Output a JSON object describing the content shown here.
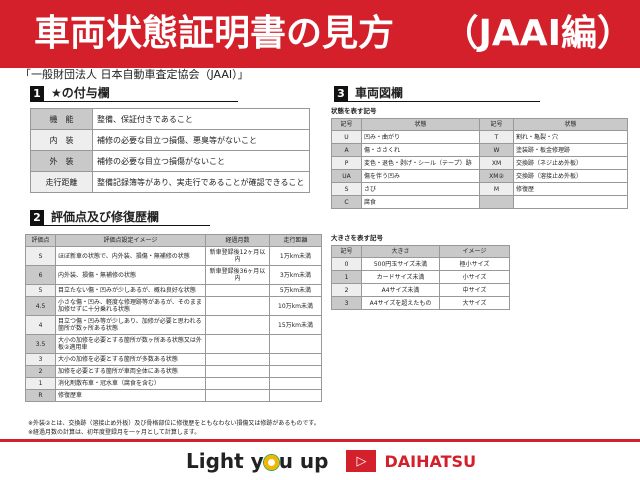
{
  "header": {
    "title": "車両状態証明書の見方　 （JAAI編）",
    "subtitle": "「一般財団法人 日本自動車査定協会（JAAI）」"
  },
  "s1": {
    "num": "1",
    "title": "★の付与欄",
    "rows": [
      [
        "機　能",
        "整備、保証付きであること"
      ],
      [
        "内　装",
        "補修の必要な目立つ損傷、悪臭等がないこと"
      ],
      [
        "外　装",
        "補修の必要な目立つ損傷がないこと"
      ],
      [
        "走行距離",
        "整備記録簿等があり、実走行であることが確認できること"
      ]
    ]
  },
  "s2": {
    "num": "2",
    "title": "評価点及び修復歴欄",
    "headers": [
      "評価点",
      "評価点設定イメージ",
      "経過月数",
      "走行距離"
    ],
    "rows": [
      [
        "S",
        "ほぼ新車の状態で、内外装、損傷・無補修の状態",
        "新車登録後12ヶ月以内",
        "1万km未満"
      ],
      [
        "6",
        "内外装、損傷・無補修の状態",
        "新車登録後36ヶ月以内",
        "3万km未満"
      ],
      [
        "5",
        "目立たない傷・凹みが少しあるが、概ね良好な状態",
        "",
        "5万km未満"
      ],
      [
        "4.5",
        "小さな傷・凹み、軽度な修理跡等があるが、そのまま加修せずに十分乗れる状態",
        "",
        "10万km未満"
      ],
      [
        "4",
        "目立つ傷・凹み等が少しあり、加修が必要と思われる箇所が数ヶ所ある状態",
        "",
        "15万km未満"
      ],
      [
        "3.5",
        "大小の加修を必要とする箇所が数ヶ所ある状態又は外板②適用車",
        "",
        ""
      ],
      [
        "3",
        "大小の加修を必要とする箇所が多数ある状態",
        "",
        ""
      ],
      [
        "2",
        "加修を必要とする箇所が車両全体にある状態",
        "",
        ""
      ],
      [
        "1",
        "消化剤散布車・冠水車（腐食を含む）",
        "",
        ""
      ],
      [
        "R",
        "修復歴車",
        "",
        ""
      ]
    ]
  },
  "s3": {
    "num": "3",
    "title": "車両図欄",
    "state_label": "状態を表す記号",
    "state_headers": [
      "記号",
      "状態",
      "記号",
      "状態"
    ],
    "state_rows": [
      [
        "U",
        "凹み・曲がり",
        "T",
        "割れ・亀裂・穴"
      ],
      [
        "A",
        "傷・ささくれ",
        "W",
        "塗装跡・板金修理跡"
      ],
      [
        "P",
        "変色・退色・剥げ・シール（テープ）跡",
        "XM",
        "交換跡（ネジ止め外板）"
      ],
      [
        "UA",
        "傷を伴う凹み",
        "XM②",
        "交換跡（溶接止め外板）"
      ],
      [
        "S",
        "さび",
        "M",
        "修復歴"
      ],
      [
        "C",
        "腐食",
        "",
        ""
      ]
    ],
    "size_label": "大きさを表す記号",
    "size_headers": [
      "記号",
      "大きさ",
      "イメージ"
    ],
    "size_rows": [
      [
        "0",
        "500円玉サイズ未満",
        "極小サイズ"
      ],
      [
        "1",
        "カードサイズ未満",
        "小サイズ"
      ],
      [
        "2",
        "A4サイズ未満",
        "中サイズ"
      ],
      [
        "3",
        "A4サイズを超えたもの",
        "大サイズ"
      ]
    ]
  },
  "notes": [
    "※外装②とは、交換跡（溶接止め外板）及び骨格部位に修復歴をともなわない損傷又は修跡があるものです。",
    "※経過月数の計算は、初年度登録月を一ヶ月として計算します。"
  ],
  "footer": {
    "slogan_a": "Light y",
    "slogan_b": "u up",
    "brand": "DAIHATSU"
  },
  "colors": {
    "accent": "#d3202a"
  }
}
